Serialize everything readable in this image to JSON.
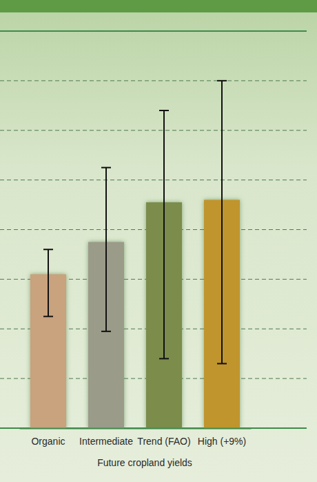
{
  "chart_data": {
    "type": "bar",
    "x_label": "Future cropland yields",
    "categories": [
      "Organic",
      "Intermediate",
      "Trend (FAO)",
      "High (+9%)"
    ],
    "values": [
      3.1,
      3.75,
      4.55,
      4.6
    ],
    "error_lower": [
      2.25,
      1.95,
      1.4,
      1.3
    ],
    "error_upper": [
      3.6,
      5.25,
      6.4,
      7.0
    ],
    "colors": [
      "#c9a27e",
      "#9b9b8a",
      "#7c8c4c",
      "#c0952e"
    ],
    "ylim": [
      0,
      8
    ],
    "yticks": [
      0,
      1,
      2,
      3,
      4,
      5,
      6,
      7,
      8
    ],
    "grid": true,
    "tick_labels": "x"
  }
}
